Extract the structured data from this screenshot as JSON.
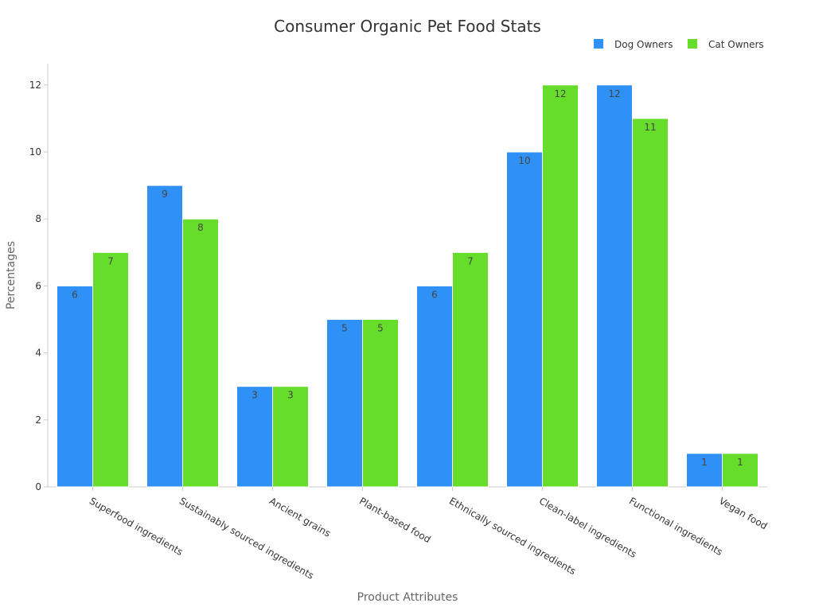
{
  "chart_data": {
    "type": "bar",
    "title": "Consumer Organic Pet Food Stats",
    "xlabel": "Product Attributes",
    "ylabel": "Percentages",
    "ylim": [
      0,
      12.5
    ],
    "yticks": [
      "0",
      "2",
      "4",
      "6",
      "8",
      "10",
      "12"
    ],
    "grid": false,
    "legend_position": "top-right",
    "categories": [
      "Superfood ingredients",
      "Sustainably sourced ingredients",
      "Ancient grains",
      "Plant-based food",
      "Ethnically sourced ingredients",
      "Clean-label ingredients",
      "Functional ingredients",
      "Vegan food"
    ],
    "series": [
      {
        "name": "Dog Owners",
        "color": "#2f91f6",
        "values": [
          6,
          9,
          3,
          5,
          6,
          10,
          12,
          1
        ]
      },
      {
        "name": "Cat Owners",
        "color": "#66dd2a",
        "values": [
          7,
          8,
          3,
          5,
          7,
          12,
          11,
          1
        ]
      }
    ]
  }
}
